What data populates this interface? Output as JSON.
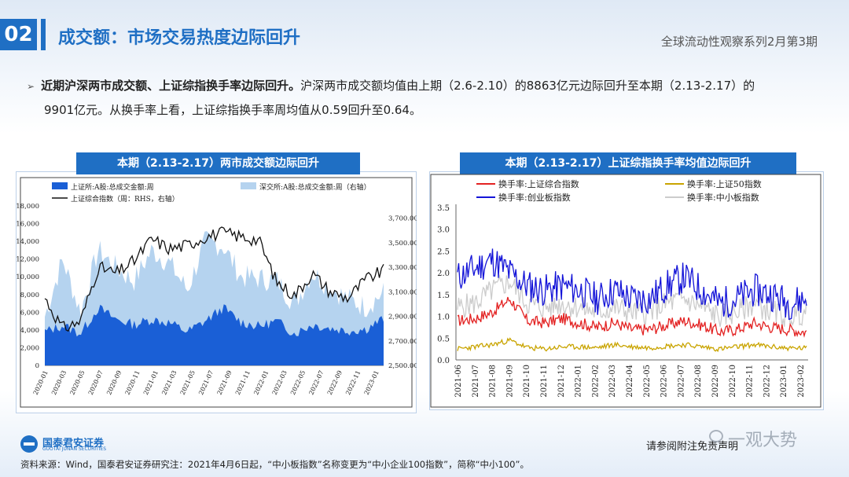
{
  "header": {
    "section_number": "02",
    "title": "成交额：市场交易热度边际回升",
    "series_name": "全球流动性观察系列2月第3期"
  },
  "summary": {
    "bold": "近期沪深两市成交额、上证综指换手率边际回升。",
    "line1_rest": "沪深两市成交额均值由上期（2.6-2.10）的8863亿元边际回升至本期（2.13-2.17）的",
    "line2": "9901亿元。从换手率上看，上证综指换手率周均值从0.59回升至0.64。"
  },
  "chart_left": {
    "title": "本期（2.13-2.17）两市成交额边际回升",
    "legend": {
      "sh": "上证所:A股:总成交金额:周",
      "sz": "深交所:A股:总成交金额:周（右轴）",
      "index": "上证综合指数（周：RHS，右轴）"
    },
    "y_left_ticks": [
      "18,000",
      "16,000",
      "14,000",
      "12,000",
      "10,000",
      "8,000",
      "6,000",
      "4,000",
      "2,000",
      "0"
    ],
    "y_right_ticks": [
      "3,700.00",
      "3,500.00",
      "3,300.00",
      "3,100.00",
      "2,900.00",
      "2,700.00",
      "2,500.00"
    ],
    "x_ticks": [
      "2020-01",
      "2020-03",
      "2020-05",
      "2020-07",
      "2020-09",
      "2020-11",
      "2021-01",
      "2021-03",
      "2021-05",
      "2021-07",
      "2021-09",
      "2021-11",
      "2022-01",
      "2022-03",
      "2022-05",
      "2022-07",
      "2022-09",
      "2022-11",
      "2023-01"
    ]
  },
  "chart_right": {
    "title": "本期（2.13-2.17）上证综指换手率均值边际回升",
    "legend": {
      "sse_comp": "换手率:上证综合指数",
      "sse50": "换手率:上证50指数",
      "chinext": "换手率:创业板指数",
      "sme": "换手率:中小板指数"
    },
    "y_ticks": [
      "3.5",
      "3.0",
      "2.5",
      "2.0",
      "1.5",
      "1.0",
      "0.5",
      "0.0"
    ],
    "x_ticks": [
      "2021-06",
      "2021-07",
      "2021-08",
      "2021-09",
      "2021-10",
      "2021-11",
      "2021-12",
      "2022-01",
      "2022-02",
      "2022-03",
      "2022-04",
      "2022-05",
      "2022-06",
      "2022-07",
      "2022-08",
      "2022-09",
      "2022-10",
      "2022-11",
      "2022-12",
      "2023-01",
      "2023-02"
    ]
  },
  "chart_data": [
    {
      "type": "area",
      "title": "本期（2.13-2.17）两市成交额边际回升",
      "x": [
        "2020-01",
        "2020-03",
        "2020-05",
        "2020-07",
        "2020-09",
        "2020-11",
        "2021-01",
        "2021-03",
        "2021-05",
        "2021-07",
        "2021-09",
        "2021-11",
        "2022-01",
        "2022-03",
        "2022-05",
        "2022-07",
        "2022-09",
        "2022-11",
        "2023-01",
        "2023-02"
      ],
      "series": [
        {
          "name": "上证所:A股:总成交金额:周",
          "values": [
            3800,
            4500,
            3600,
            6500,
            5200,
            4600,
            5200,
            4800,
            3800,
            5000,
            6500,
            4900,
            4400,
            5000,
            3600,
            4600,
            4200,
            3900,
            4100,
            5300
          ]
        },
        {
          "name": "深交所:A股:总成交金额:周（右轴）",
          "values": [
            5500,
            12000,
            6000,
            13000,
            11000,
            9500,
            13000,
            11500,
            8500,
            14000,
            13500,
            10000,
            9800,
            9600,
            7000,
            10500,
            8800,
            7500,
            6600,
            8200
          ]
        },
        {
          "name": "上证综合指数（周：RHS，右轴）",
          "values": [
            3050,
            2800,
            2860,
            3300,
            3250,
            3350,
            3530,
            3450,
            3480,
            3550,
            3580,
            3550,
            3520,
            3180,
            3070,
            3250,
            3100,
            3050,
            3200,
            3270
          ]
        }
      ],
      "ylim": [
        0,
        18000
      ],
      "ylim_right": [
        2500,
        3800
      ]
    },
    {
      "type": "line",
      "title": "本期（2.13-2.17）上证综指换手率均值边际回升",
      "x": [
        "2021-06",
        "2021-07",
        "2021-08",
        "2021-09",
        "2021-10",
        "2021-11",
        "2021-12",
        "2022-01",
        "2022-02",
        "2022-03",
        "2022-04",
        "2022-05",
        "2022-06",
        "2022-07",
        "2022-08",
        "2022-09",
        "2022-10",
        "2022-11",
        "2022-12",
        "2023-01",
        "2023-02"
      ],
      "series": [
        {
          "name": "换手率:上证综合指数",
          "values": [
            0.9,
            0.95,
            1.1,
            1.4,
            0.9,
            0.85,
            0.95,
            0.85,
            0.75,
            0.85,
            0.7,
            0.7,
            0.8,
            0.9,
            0.8,
            0.65,
            0.7,
            0.85,
            0.75,
            0.7,
            0.64
          ]
        },
        {
          "name": "换手率:上证50指数",
          "values": [
            0.25,
            0.3,
            0.35,
            0.45,
            0.28,
            0.25,
            0.3,
            0.3,
            0.28,
            0.35,
            0.3,
            0.28,
            0.32,
            0.35,
            0.3,
            0.25,
            0.3,
            0.35,
            0.3,
            0.27,
            0.27
          ]
        },
        {
          "name": "换手率:创业板指数",
          "values": [
            1.9,
            2.1,
            2.3,
            2.0,
            1.7,
            1.6,
            1.7,
            1.6,
            1.4,
            1.6,
            1.4,
            1.4,
            1.7,
            1.9,
            1.6,
            1.3,
            1.4,
            1.6,
            1.5,
            1.3,
            1.4
          ]
        },
        {
          "name": "换手率:中小板指数",
          "values": [
            1.2,
            1.3,
            1.6,
            1.8,
            1.3,
            1.2,
            1.3,
            1.2,
            1.1,
            1.2,
            1.1,
            1.1,
            1.3,
            1.4,
            1.2,
            1.0,
            1.1,
            1.3,
            1.1,
            1.0,
            1.1
          ]
        }
      ],
      "ylim": [
        0,
        3.5
      ]
    }
  ],
  "footer": {
    "logo_cn": "国泰君安证券",
    "logo_en": "GUOTAI JUNAN SECURITIES",
    "disclaimer": "请参阅附注免责声明",
    "watermark": "一观大势",
    "source": "资料来源：Wind，国泰君安证券研究注：2021年4月6日起，“中小板指数”名称变更为“中小企业100指数”，简称“中小100”。"
  },
  "colors": {
    "accent": "#1f6fc4",
    "sh_fill": "#1a5fd6",
    "sz_fill": "#b5d3ef",
    "index_line": "#111111",
    "sse_comp": "#e32222",
    "sse50": "#c9a400",
    "chinext": "#1414d8",
    "sme": "#cccccc"
  }
}
